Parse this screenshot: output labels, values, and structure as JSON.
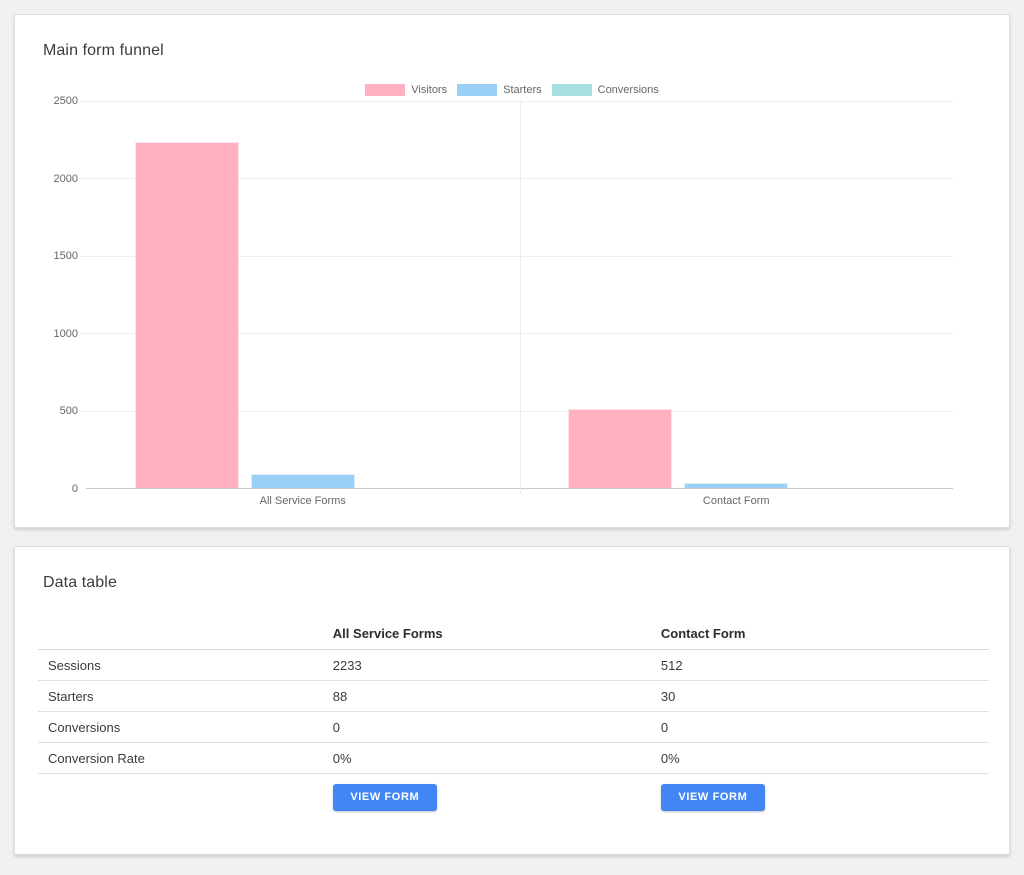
{
  "funnel_card": {
    "title": "Main form funnel"
  },
  "chart_data": {
    "type": "bar",
    "title": "Main form funnel",
    "categories": [
      "All Service Forms",
      "Contact Form"
    ],
    "series": [
      {
        "name": "Visitors",
        "color": "#ffb1c1",
        "values": [
          2233,
          512
        ]
      },
      {
        "name": "Starters",
        "color": "#9ad0f5",
        "values": [
          88,
          30
        ]
      },
      {
        "name": "Conversions",
        "color": "#a5dfdf",
        "values": [
          0,
          0
        ]
      }
    ],
    "xlabel": "",
    "ylabel": "",
    "ylim": [
      0,
      2500
    ],
    "yticks": [
      0,
      500,
      1000,
      1500,
      2000,
      2500
    ],
    "grid": true,
    "legend_position": "top"
  },
  "data_table": {
    "title": "Data table",
    "columns": [
      "All Service Forms",
      "Contact Form"
    ],
    "rows": [
      {
        "label": "Sessions",
        "values": [
          "2233",
          "512"
        ]
      },
      {
        "label": "Starters",
        "values": [
          "88",
          "30"
        ]
      },
      {
        "label": "Conversions",
        "values": [
          "0",
          "0"
        ]
      },
      {
        "label": "Conversion Rate",
        "values": [
          "0%",
          "0%"
        ]
      }
    ],
    "button_label": "VIEW FORM",
    "button_color": "#4285f4"
  }
}
